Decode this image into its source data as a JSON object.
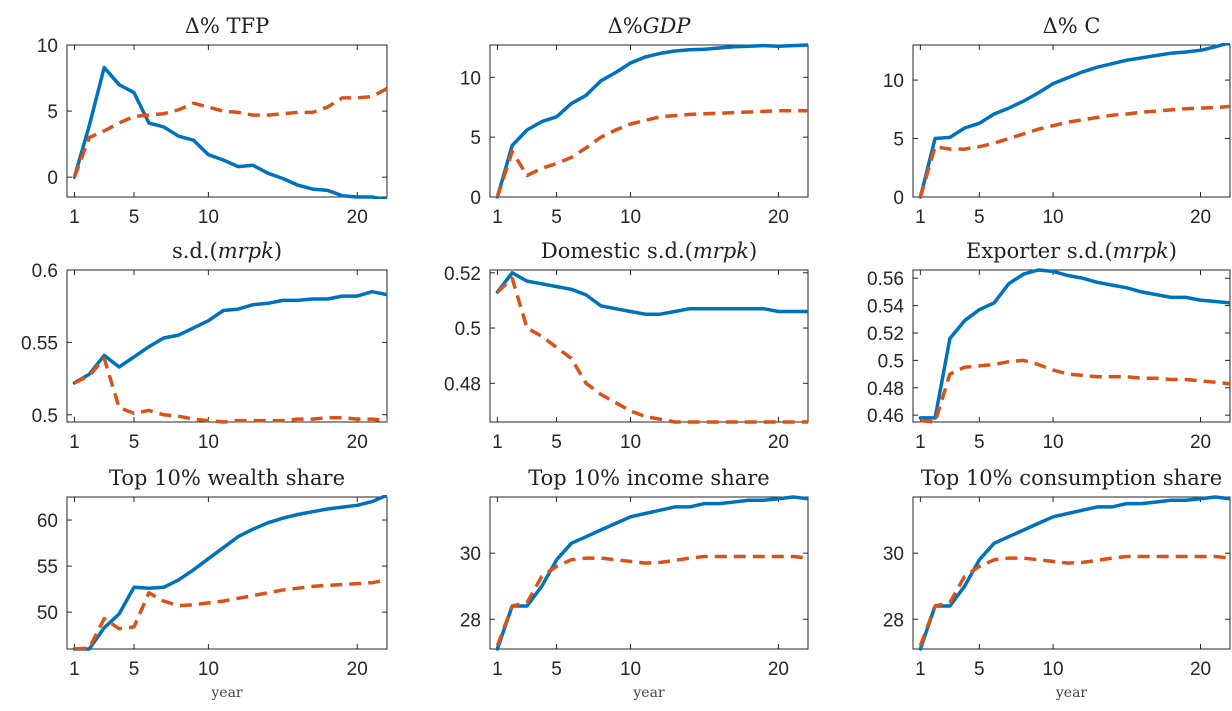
{
  "colors": {
    "series_solid": "#0072BD",
    "series_dashed": "#D95319"
  },
  "chart_data": [
    {
      "type": "line",
      "title": "Δ% TFP",
      "xlabel": "",
      "xlim": [
        0.5,
        22
      ],
      "ylim": [
        -1.5,
        10
      ],
      "xticks": [
        1,
        5,
        10,
        20
      ],
      "yticks": [
        0,
        5,
        10
      ],
      "grid": false,
      "x": [
        1,
        2,
        3,
        4,
        5,
        6,
        7,
        8,
        9,
        10,
        11,
        12,
        13,
        14,
        15,
        16,
        17,
        18,
        19,
        20,
        21,
        22
      ],
      "series": [
        {
          "style": "solid",
          "values": [
            0,
            3.9,
            8.3,
            7.0,
            6.4,
            4.1,
            3.8,
            3.1,
            2.8,
            1.7,
            1.3,
            0.8,
            0.9,
            0.3,
            -0.1,
            -0.6,
            -0.9,
            -1.0,
            -1.4,
            -1.5,
            -1.5,
            -1.7
          ]
        },
        {
          "style": "dashed",
          "values": [
            0,
            3.0,
            3.5,
            4.1,
            4.6,
            4.7,
            4.8,
            5.1,
            5.6,
            5.3,
            5.0,
            4.9,
            4.7,
            4.7,
            4.8,
            4.9,
            4.9,
            5.3,
            6.0,
            6.0,
            6.1,
            6.7
          ]
        }
      ]
    },
    {
      "type": "line",
      "title": "Δ%",
      "title_it": "GDP",
      "xlabel": "",
      "xlim": [
        0.5,
        22
      ],
      "ylim": [
        0,
        12.7
      ],
      "xticks": [
        1,
        5,
        10,
        20
      ],
      "yticks": [
        0,
        5,
        10
      ],
      "grid": false,
      "x": [
        1,
        2,
        3,
        4,
        5,
        6,
        7,
        8,
        9,
        10,
        11,
        12,
        13,
        14,
        15,
        16,
        17,
        18,
        19,
        20,
        21,
        22
      ],
      "series": [
        {
          "style": "solid",
          "values": [
            0,
            4.3,
            5.6,
            6.3,
            6.7,
            7.8,
            8.5,
            9.7,
            10.4,
            11.2,
            11.7,
            12.0,
            12.2,
            12.3,
            12.35,
            12.45,
            12.55,
            12.6,
            12.65,
            12.6,
            12.65,
            12.7
          ]
        },
        {
          "style": "dashed",
          "values": [
            0,
            3.8,
            1.8,
            2.4,
            2.8,
            3.3,
            4.1,
            5.0,
            5.6,
            6.1,
            6.4,
            6.7,
            6.8,
            6.9,
            6.95,
            7.0,
            7.05,
            7.1,
            7.15,
            7.2,
            7.2,
            7.2
          ]
        }
      ]
    },
    {
      "type": "line",
      "title": "Δ% C",
      "xlabel": "",
      "xlim": [
        0.5,
        22
      ],
      "ylim": [
        0,
        13
      ],
      "xticks": [
        1,
        5,
        10,
        20
      ],
      "yticks": [
        0,
        5,
        10
      ],
      "grid": false,
      "x": [
        1,
        2,
        3,
        4,
        5,
        6,
        7,
        8,
        9,
        10,
        11,
        12,
        13,
        14,
        15,
        16,
        17,
        18,
        19,
        20,
        21,
        22
      ],
      "series": [
        {
          "style": "solid",
          "values": [
            0,
            5.0,
            5.1,
            5.9,
            6.3,
            7.1,
            7.6,
            8.2,
            8.9,
            9.7,
            10.2,
            10.7,
            11.1,
            11.4,
            11.7,
            11.9,
            12.1,
            12.3,
            12.4,
            12.55,
            12.85,
            13.2
          ]
        },
        {
          "style": "dashed",
          "values": [
            0,
            4.3,
            4.1,
            4.1,
            4.3,
            4.6,
            5.0,
            5.4,
            5.8,
            6.1,
            6.4,
            6.6,
            6.8,
            7.0,
            7.1,
            7.25,
            7.35,
            7.45,
            7.55,
            7.6,
            7.65,
            7.75
          ]
        }
      ]
    },
    {
      "type": "line",
      "title": "s.d.(",
      "title_it": "mrpk",
      "title_end": ")",
      "xlabel": "",
      "xlim": [
        0.5,
        22
      ],
      "ylim": [
        0.495,
        0.6
      ],
      "xticks": [
        1,
        5,
        10,
        20
      ],
      "yticks": [
        0.5,
        0.55,
        0.6
      ],
      "grid": false,
      "x": [
        1,
        2,
        3,
        4,
        5,
        6,
        7,
        8,
        9,
        10,
        11,
        12,
        13,
        14,
        15,
        16,
        17,
        18,
        19,
        20,
        21,
        22
      ],
      "series": [
        {
          "style": "solid",
          "values": [
            0.522,
            0.528,
            0.541,
            0.533,
            0.54,
            0.547,
            0.553,
            0.555,
            0.56,
            0.565,
            0.572,
            0.573,
            0.576,
            0.577,
            0.579,
            0.579,
            0.58,
            0.58,
            0.582,
            0.582,
            0.585,
            0.583
          ]
        },
        {
          "style": "dashed",
          "values": [
            0.522,
            0.527,
            0.539,
            0.505,
            0.501,
            0.503,
            0.5,
            0.499,
            0.497,
            0.496,
            0.495,
            0.496,
            0.496,
            0.496,
            0.496,
            0.497,
            0.497,
            0.498,
            0.498,
            0.497,
            0.497,
            0.496
          ]
        }
      ]
    },
    {
      "type": "line",
      "title": "Domestic s.d.(",
      "title_it": "mrpk",
      "title_end": ")",
      "xlabel": "",
      "xlim": [
        0.5,
        22
      ],
      "ylim": [
        0.466,
        0.521
      ],
      "xticks": [
        1,
        5,
        10,
        20
      ],
      "yticks": [
        0.48,
        0.5,
        0.52
      ],
      "grid": false,
      "x": [
        1,
        2,
        3,
        4,
        5,
        6,
        7,
        8,
        9,
        10,
        11,
        12,
        13,
        14,
        15,
        16,
        17,
        18,
        19,
        20,
        21,
        22
      ],
      "series": [
        {
          "style": "solid",
          "values": [
            0.513,
            0.52,
            0.517,
            0.516,
            0.515,
            0.514,
            0.512,
            0.508,
            0.507,
            0.506,
            0.505,
            0.505,
            0.506,
            0.507,
            0.507,
            0.507,
            0.507,
            0.507,
            0.507,
            0.506,
            0.506,
            0.506
          ]
        },
        {
          "style": "dashed",
          "values": [
            0.513,
            0.518,
            0.5,
            0.497,
            0.493,
            0.489,
            0.48,
            0.476,
            0.473,
            0.47,
            0.468,
            0.467,
            0.466,
            0.466,
            0.466,
            0.466,
            0.466,
            0.466,
            0.466,
            0.466,
            0.466,
            0.466
          ]
        }
      ]
    },
    {
      "type": "line",
      "title": "Exporter s.d.(",
      "title_it": "mrpk",
      "title_end": ")",
      "xlabel": "",
      "xlim": [
        0.5,
        22
      ],
      "ylim": [
        0.455,
        0.566
      ],
      "xticks": [
        1,
        5,
        10,
        20
      ],
      "yticks": [
        0.46,
        0.48,
        0.5,
        0.52,
        0.54,
        0.56
      ],
      "grid": false,
      "x": [
        1,
        2,
        3,
        4,
        5,
        6,
        7,
        8,
        9,
        10,
        11,
        12,
        13,
        14,
        15,
        16,
        17,
        18,
        19,
        20,
        21,
        22
      ],
      "series": [
        {
          "style": "solid",
          "values": [
            0.458,
            0.458,
            0.516,
            0.529,
            0.537,
            0.542,
            0.556,
            0.563,
            0.566,
            0.565,
            0.562,
            0.56,
            0.557,
            0.555,
            0.553,
            0.55,
            0.548,
            0.546,
            0.546,
            0.544,
            0.543,
            0.542
          ]
        },
        {
          "style": "dashed",
          "values": [
            0.456,
            0.455,
            0.49,
            0.495,
            0.496,
            0.497,
            0.499,
            0.5,
            0.497,
            0.493,
            0.49,
            0.489,
            0.488,
            0.488,
            0.488,
            0.487,
            0.487,
            0.486,
            0.486,
            0.485,
            0.484,
            0.483
          ]
        }
      ]
    },
    {
      "type": "line",
      "title": "Top 10% wealth share",
      "xlabel": "year",
      "xlim": [
        0.5,
        22
      ],
      "ylim": [
        46,
        62.5
      ],
      "xticks": [
        1,
        5,
        10,
        20
      ],
      "yticks": [
        50,
        55,
        60
      ],
      "grid": false,
      "x": [
        1,
        2,
        3,
        4,
        5,
        6,
        7,
        8,
        9,
        10,
        11,
        12,
        13,
        14,
        15,
        16,
        17,
        18,
        19,
        20,
        21,
        22
      ],
      "series": [
        {
          "style": "solid",
          "values": [
            46,
            46,
            48.3,
            49.8,
            52.7,
            52.6,
            52.7,
            53.5,
            54.6,
            55.8,
            57.0,
            58.2,
            59.0,
            59.7,
            60.2,
            60.6,
            60.9,
            61.2,
            61.4,
            61.6,
            62.0,
            62.7
          ]
        },
        {
          "style": "dashed",
          "values": [
            46,
            46.1,
            49.3,
            48.2,
            48.4,
            52.1,
            51.2,
            50.7,
            50.8,
            51.0,
            51.2,
            51.5,
            51.8,
            52.1,
            52.4,
            52.6,
            52.8,
            52.9,
            53.0,
            53.1,
            53.2,
            53.5
          ]
        }
      ]
    },
    {
      "type": "line",
      "title": "Top 10% income share",
      "xlabel": "year",
      "xlim": [
        0.5,
        22
      ],
      "ylim": [
        27.1,
        31.7
      ],
      "xticks": [
        1,
        5,
        10,
        20
      ],
      "yticks": [
        28,
        30
      ],
      "grid": false,
      "x": [
        1,
        2,
        3,
        4,
        5,
        6,
        7,
        8,
        9,
        10,
        11,
        12,
        13,
        14,
        15,
        16,
        17,
        18,
        19,
        20,
        21,
        22
      ],
      "series": [
        {
          "style": "solid",
          "values": [
            27.1,
            28.4,
            28.4,
            29.0,
            29.8,
            30.3,
            30.5,
            30.7,
            30.9,
            31.1,
            31.2,
            31.3,
            31.4,
            31.4,
            31.5,
            31.5,
            31.55,
            31.6,
            31.6,
            31.65,
            31.7,
            31.65
          ]
        },
        {
          "style": "dashed",
          "values": [
            27.2,
            28.4,
            28.5,
            29.3,
            29.6,
            29.8,
            29.85,
            29.85,
            29.8,
            29.75,
            29.7,
            29.72,
            29.78,
            29.85,
            29.9,
            29.9,
            29.9,
            29.9,
            29.9,
            29.9,
            29.9,
            29.85
          ]
        }
      ]
    },
    {
      "type": "line",
      "title": "Top 10% consumption share",
      "xlabel": "year",
      "xlim": [
        0.5,
        22
      ],
      "ylim": [
        27.1,
        31.7
      ],
      "xticks": [
        1,
        5,
        10,
        20
      ],
      "yticks": [
        28,
        30
      ],
      "grid": false,
      "x": [
        1,
        2,
        3,
        4,
        5,
        6,
        7,
        8,
        9,
        10,
        11,
        12,
        13,
        14,
        15,
        16,
        17,
        18,
        19,
        20,
        21,
        22
      ],
      "series": [
        {
          "style": "solid",
          "values": [
            27.1,
            28.4,
            28.4,
            29.0,
            29.8,
            30.3,
            30.5,
            30.7,
            30.9,
            31.1,
            31.2,
            31.3,
            31.4,
            31.4,
            31.5,
            31.5,
            31.55,
            31.6,
            31.6,
            31.65,
            31.7,
            31.65
          ]
        },
        {
          "style": "dashed",
          "values": [
            27.2,
            28.4,
            28.5,
            29.3,
            29.6,
            29.8,
            29.85,
            29.85,
            29.8,
            29.75,
            29.7,
            29.72,
            29.78,
            29.85,
            29.9,
            29.9,
            29.9,
            29.9,
            29.9,
            29.9,
            29.9,
            29.85
          ]
        }
      ]
    }
  ]
}
